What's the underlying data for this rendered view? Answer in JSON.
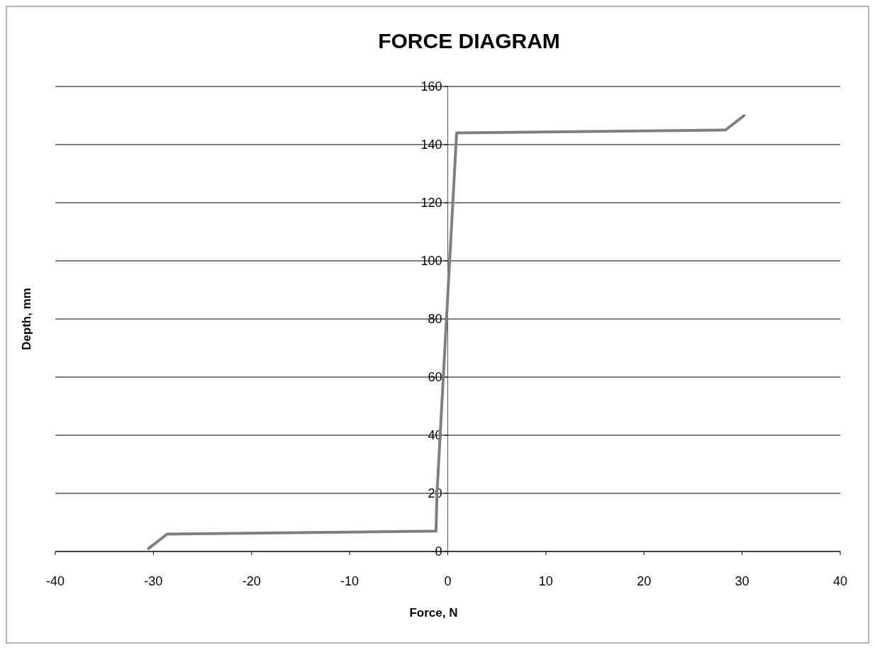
{
  "chart_data": {
    "type": "line",
    "title": "FORCE DIAGRAM",
    "xlabel": "Force, N",
    "ylabel": "Depth, mm",
    "series": [
      {
        "color": "#7f7f7f",
        "x": [
          -30.5,
          -28.6,
          -1.2,
          -1.1,
          0.9,
          28.3,
          30.2
        ],
        "values": [
          1,
          6,
          7,
          20,
          144,
          145,
          150
        ]
      }
    ],
    "xlim": [
      -40,
      40
    ],
    "xticks": [
      -40,
      -30,
      -20,
      -10,
      0,
      10,
      20,
      30,
      40
    ],
    "ylim": [
      0,
      160
    ],
    "yticks": [
      0,
      20,
      40,
      60,
      80,
      100,
      120,
      140,
      160
    ],
    "grid": "y",
    "marker": "none",
    "line_style": "solid"
  }
}
